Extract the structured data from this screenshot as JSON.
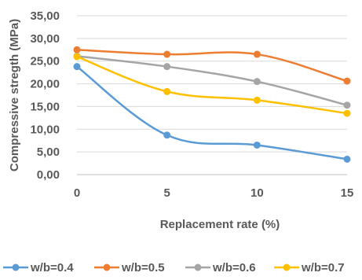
{
  "chart_data": {
    "type": "line",
    "x": [
      0,
      5,
      10,
      15
    ],
    "xlabel": "Replacement rate (%)",
    "ylabel": "Compressive stregth (MPa)",
    "ylim": [
      0,
      35
    ],
    "yticks": [
      "0,00",
      "5,00",
      "10,00",
      "15,00",
      "20,00",
      "25,00",
      "30,00",
      "35,00"
    ],
    "xticks": [
      "0",
      "5",
      "10",
      "15"
    ],
    "grid": "horizontal",
    "legend": "bottom",
    "series": [
      {
        "name": "w/b=0.4",
        "color": "#5b9bd5",
        "values": [
          23.8,
          8.7,
          6.5,
          3.4
        ]
      },
      {
        "name": "w/b=0.5",
        "color": "#ed7d31",
        "values": [
          27.5,
          26.5,
          26.5,
          20.6
        ]
      },
      {
        "name": "w/b=0.6",
        "color": "#a5a5a5",
        "values": [
          26.1,
          23.8,
          20.5,
          15.3
        ]
      },
      {
        "name": "w/b=0.7",
        "color": "#ffc000",
        "values": [
          26.0,
          18.3,
          16.4,
          13.5
        ]
      }
    ]
  }
}
